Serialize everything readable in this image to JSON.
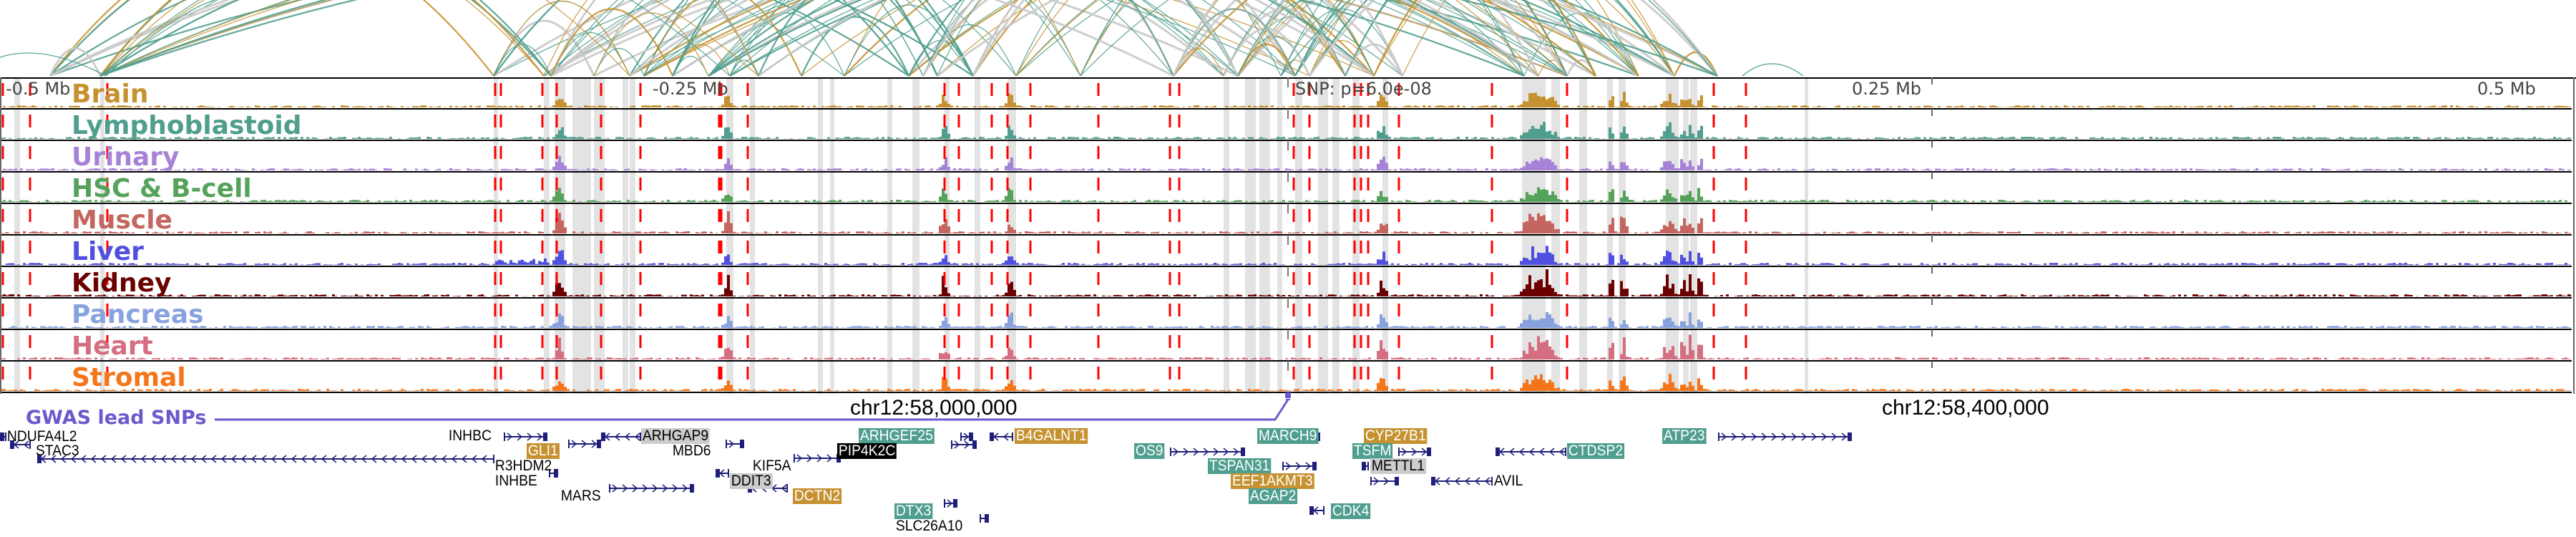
{
  "colors": {
    "arc_teal": "#4f9e8e",
    "arc_gold": "#c69231",
    "arc_gray": "#c9c9c9",
    "snp_red": "#ff0000",
    "highlight_gray": "#e3e3e3",
    "gene_dark": "#1f1f7a",
    "gwas": "#6a5acd",
    "badge_teal": "#4f9e8e",
    "badge_gold": "#c69231",
    "badge_gray": "#cccccc",
    "badge_black": "#000000"
  },
  "ruler": {
    "labels": [
      "-0.5 Mb",
      "-0.25 Mb",
      "SNP: p=6.0e-08",
      "0.25 Mb",
      "0.5 Mb"
    ]
  },
  "tracks": [
    {
      "name": "Brain",
      "color": "#c69231"
    },
    {
      "name": "Lymphoblastoid",
      "color": "#4f9e8e"
    },
    {
      "name": "Urinary",
      "color": "#a683d6"
    },
    {
      "name": "HSC & B-cell",
      "color": "#55a35a"
    },
    {
      "name": "Muscle",
      "color": "#c4665f"
    },
    {
      "name": "Liver",
      "color": "#5050e0"
    },
    {
      "name": "Kidney",
      "color": "#6b0000"
    },
    {
      "name": "Pancreas",
      "color": "#88a2e0"
    },
    {
      "name": "Heart",
      "color": "#d46e80"
    },
    {
      "name": "Stromal",
      "color": "#f5761a"
    }
  ],
  "coordinates": [
    "chr12:58,000,000",
    "chr12:58,400,000"
  ],
  "gwas": {
    "label": "GWAS lead SNPs"
  },
  "genes": [
    {
      "name": "NDUFA4L2",
      "style": "plain"
    },
    {
      "name": "STAC3",
      "style": "plain"
    },
    {
      "name": "R3HDM2",
      "style": "plain"
    },
    {
      "name": "INHBC",
      "style": "plain"
    },
    {
      "name": "GLI1",
      "style": "gold"
    },
    {
      "name": "INHBE",
      "style": "plain"
    },
    {
      "name": "MARS",
      "style": "plain"
    },
    {
      "name": "ARHGAP9",
      "style": "gray"
    },
    {
      "name": "MBD6",
      "style": "plain"
    },
    {
      "name": "DDIT3",
      "style": "gray"
    },
    {
      "name": "KIF5A",
      "style": "plain"
    },
    {
      "name": "DCTN2",
      "style": "gold"
    },
    {
      "name": "ARHGEF25",
      "style": "teal"
    },
    {
      "name": "PIP4K2C",
      "style": "black"
    },
    {
      "name": "DTX3",
      "style": "teal"
    },
    {
      "name": "SLC26A10",
      "style": "plain"
    },
    {
      "name": "B4GALNT1",
      "style": "gold"
    },
    {
      "name": "OS9",
      "style": "teal"
    },
    {
      "name": "MARCH9",
      "style": "teal"
    },
    {
      "name": "TSPAN31",
      "style": "teal"
    },
    {
      "name": "EEF1AKMT3",
      "style": "gold"
    },
    {
      "name": "AGAP2",
      "style": "teal"
    },
    {
      "name": "CDK4",
      "style": "teal"
    },
    {
      "name": "CYP27B1",
      "style": "gold"
    },
    {
      "name": "TSFM",
      "style": "teal"
    },
    {
      "name": "METTL1",
      "style": "gray"
    },
    {
      "name": "AVIL",
      "style": "plain"
    },
    {
      "name": "CTDSP2",
      "style": "teal"
    },
    {
      "name": "ATP23",
      "style": "teal"
    }
  ]
}
